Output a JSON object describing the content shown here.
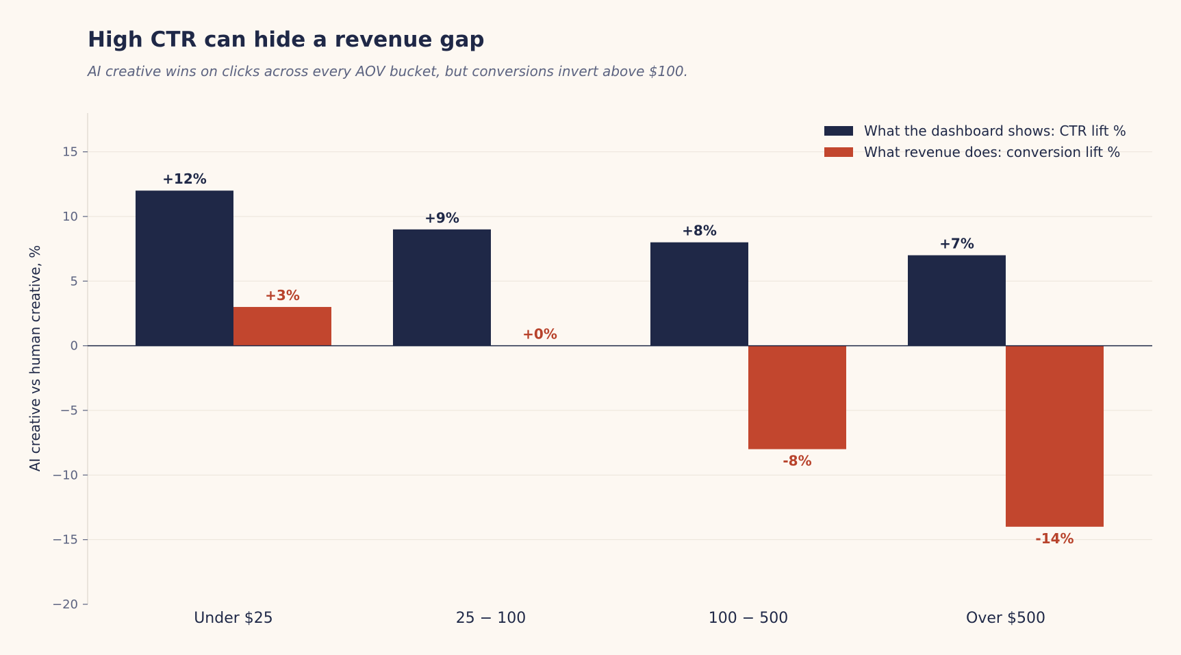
{
  "chart_data": {
    "type": "bar",
    "title": "High CTR can hide a revenue gap",
    "subtitle": "AI creative wins on clicks across every AOV bucket, but conversions invert above $100.",
    "ylabel": "AI creative vs human creative, %",
    "xlabel": "",
    "ylim": [
      -20,
      18
    ],
    "yticks": [
      {
        "value": 15,
        "label": "15"
      },
      {
        "value": 10,
        "label": "10"
      },
      {
        "value": 5,
        "label": "5"
      },
      {
        "value": 0,
        "label": "0"
      },
      {
        "value": -5,
        "label": "−5"
      },
      {
        "value": -10,
        "label": "−10"
      },
      {
        "value": -15,
        "label": "−15"
      },
      {
        "value": -20,
        "label": "−20"
      }
    ],
    "categories": [
      "Under $25",
      "25 − 100",
      "100 − 500",
      "Over $500"
    ],
    "series": [
      {
        "name": "What the dashboard shows: CTR lift %",
        "color": "#1f2847",
        "values": [
          12,
          9,
          8,
          7
        ],
        "labels": [
          "+12%",
          "+9%",
          "+8%",
          "+7%"
        ]
      },
      {
        "name": "What revenue does: conversion lift %",
        "color": "#c2462e",
        "values": [
          3,
          0,
          -8,
          -14
        ],
        "labels": [
          "+3%",
          "+0%",
          "-8%",
          "-14%"
        ]
      }
    ],
    "grid": true,
    "legend": "top-right"
  }
}
